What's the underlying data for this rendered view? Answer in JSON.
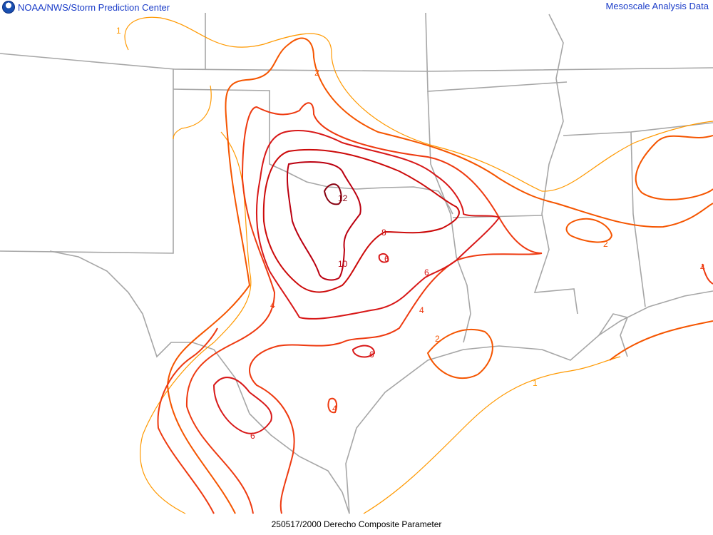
{
  "header": {
    "left_title": "NOAA/NWS/Storm Prediction Center",
    "right_title": "Mesoscale Analysis Data",
    "logo_icon": "noaa-logo-icon"
  },
  "footer": {
    "caption": "250517/2000 Derecho Composite Parameter"
  },
  "contour_colors": {
    "1": "#ff9900",
    "2": "#f55500",
    "4": "#ee3a10",
    "6": "#d81818",
    "8": "#cc0a0a",
    "10": "#bb0010",
    "12": "#880010",
    "borders": "#a6a6a6"
  },
  "contour_labels": [
    "1",
    "1",
    "2",
    "2",
    "2",
    "4",
    "4",
    "4",
    "4",
    "6",
    "6",
    "6",
    "6",
    "8",
    "10",
    "12"
  ]
}
